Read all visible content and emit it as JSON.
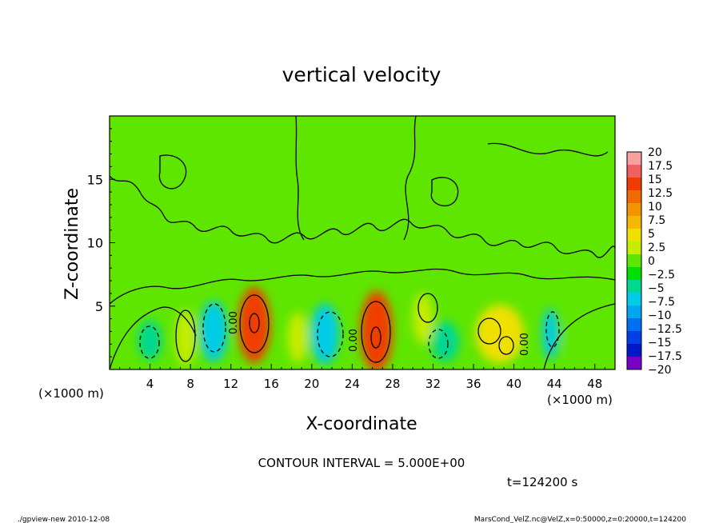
{
  "chart_data": {
    "type": "heatmap",
    "title": "vertical velocity",
    "xlabel": "X-coordinate",
    "ylabel": "Z-coordinate",
    "x_unit": "(×1000 m)",
    "y_unit": "(×1000 m)",
    "xlim": [
      0,
      50
    ],
    "ylim": [
      0,
      20
    ],
    "x_ticks": [
      4,
      8,
      12,
      16,
      20,
      24,
      28,
      32,
      36,
      40,
      44,
      48
    ],
    "y_ticks": [
      5,
      10,
      15
    ],
    "contour_interval_text": "CONTOUR INTERVAL = 5.000E+00",
    "time_text": "t=124200 s",
    "contour_label": "0.00",
    "colorbar": {
      "labels": [
        "20",
        "17.5",
        "15",
        "12.5",
        "10",
        "7.5",
        "5",
        "2.5",
        "0",
        "−2.5",
        "−5",
        "−7.5",
        "−10",
        "−12.5",
        "−15",
        "−17.5",
        "−20"
      ],
      "colors": [
        "#f7a0a0",
        "#f06060",
        "#f03c00",
        "#f06a00",
        "#f29400",
        "#f5b800",
        "#f0e000",
        "#c6ec00",
        "#5ee600",
        "#00e000",
        "#00d890",
        "#00cce8",
        "#00a6f0",
        "#0070f0",
        "#0040e8",
        "#0018c8",
        "#7a00c8"
      ]
    },
    "cells": [
      {
        "x": 4,
        "z": 2.3,
        "value": -6,
        "rx": 1.2,
        "rz": 1.6
      },
      {
        "x": 7.5,
        "z": 2.5,
        "value": 3,
        "rx": 1.0,
        "rz": 2.2
      },
      {
        "x": 10.3,
        "z": 3.0,
        "value": -8,
        "rx": 1.4,
        "rz": 2.4
      },
      {
        "x": 14.3,
        "z": 3.5,
        "value": 14,
        "rx": 1.6,
        "rz": 3.0
      },
      {
        "x": 18.6,
        "z": 2.5,
        "value": 2,
        "rx": 1.0,
        "rz": 2.0
      },
      {
        "x": 21.3,
        "z": 2.8,
        "value": -8,
        "rx": 1.4,
        "rz": 2.4
      },
      {
        "x": 26.4,
        "z": 3.0,
        "value": 14,
        "rx": 1.6,
        "rz": 3.2
      },
      {
        "x": 31.0,
        "z": 4.0,
        "value": 3,
        "rx": 1.0,
        "rz": 2.0
      },
      {
        "x": 33.2,
        "z": 2.2,
        "value": -5,
        "rx": 1.4,
        "rz": 1.6
      },
      {
        "x": 38.6,
        "z": 2.8,
        "value": 6,
        "rx": 2.4,
        "rz": 2.3
      },
      {
        "x": 43.6,
        "z": 2.8,
        "value": -7,
        "rx": 0.8,
        "rz": 2.0
      },
      {
        "x": 47.0,
        "z": 2.5,
        "value": 1,
        "rx": 2.2,
        "rz": 1.8
      }
    ]
  },
  "footer": {
    "left": "./gpview-new  2010-12-08",
    "right": "MarsCond_VelZ.nc@VelZ,x=0:50000,z=0:20000,t=124200"
  }
}
